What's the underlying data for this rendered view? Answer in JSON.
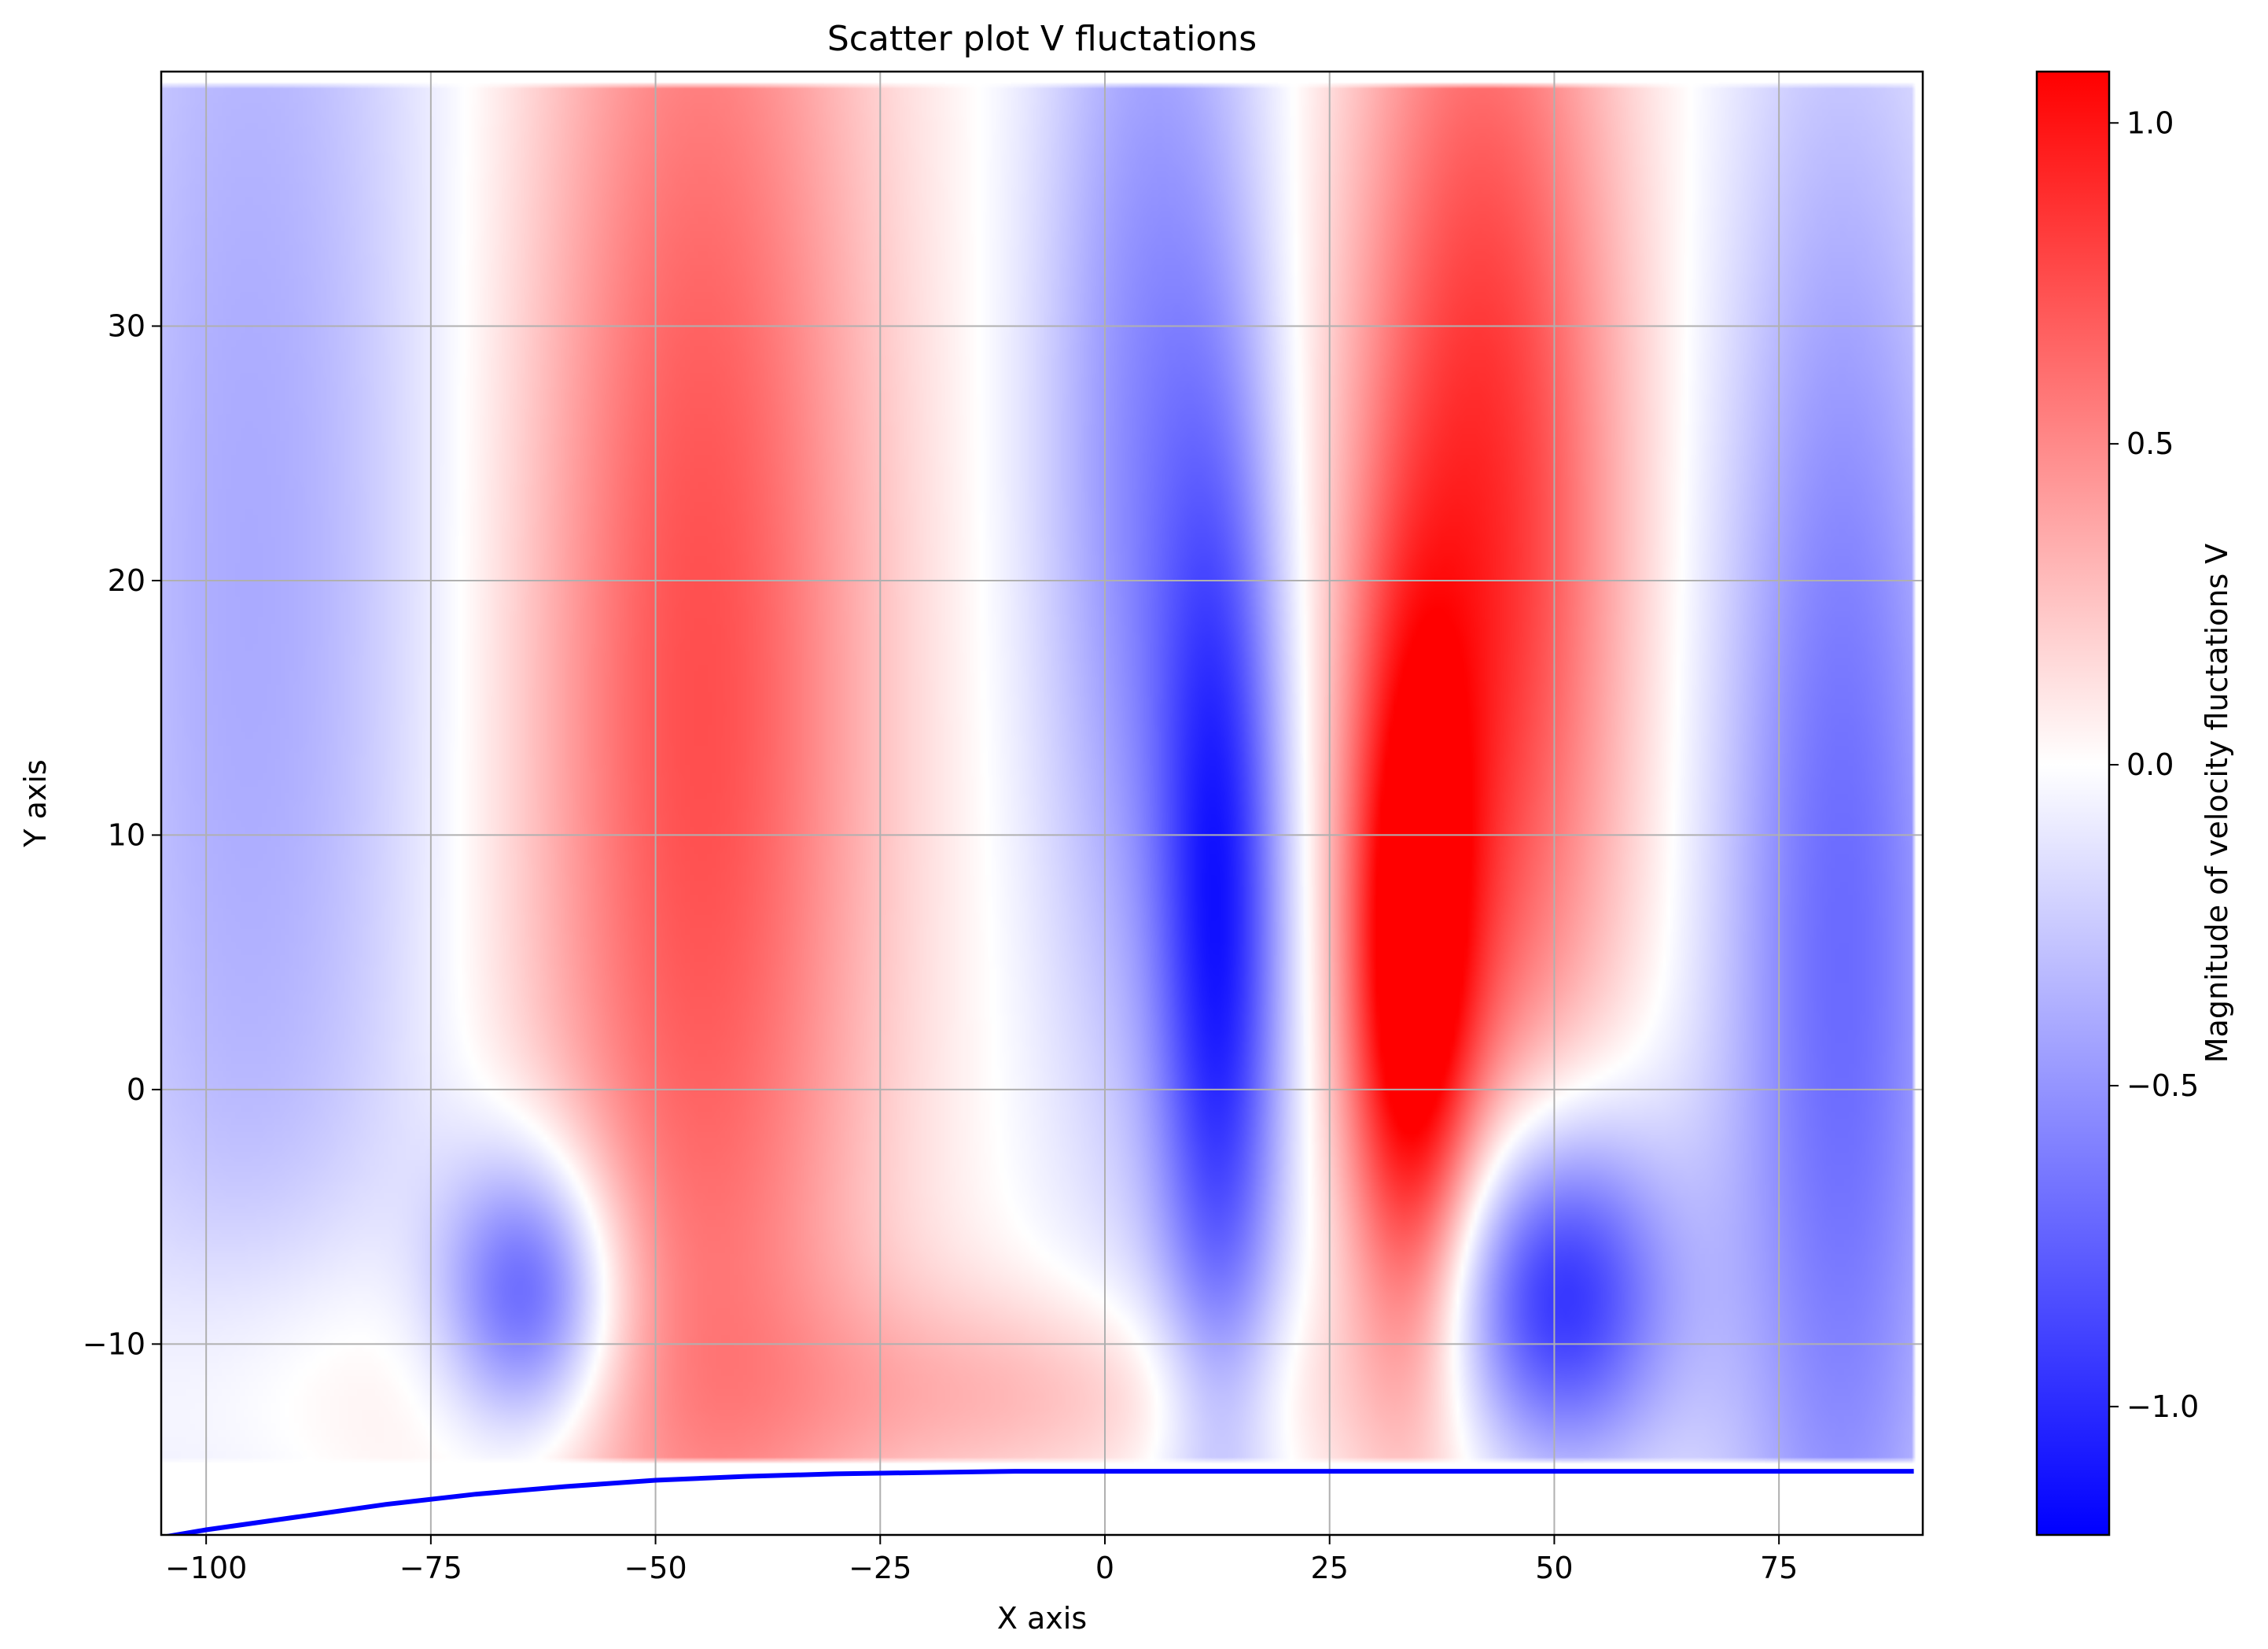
{
  "chart_data": {
    "type": "heatmap",
    "title": "Scatter plot V fluctations",
    "xlabel": "X axis",
    "ylabel": "Y axis",
    "xlim": [
      -105,
      91
    ],
    "ylim": [
      -17.5,
      40
    ],
    "grid": true,
    "x_ticks": [
      -100,
      -75,
      -50,
      -25,
      0,
      25,
      50,
      75
    ],
    "x_tick_labels": [
      "−100",
      "−75",
      "−50",
      "−25",
      "0",
      "25",
      "50",
      "75"
    ],
    "y_ticks": [
      -10,
      0,
      10,
      20,
      30
    ],
    "y_tick_labels": [
      "−10",
      "0",
      "10",
      "20",
      "30"
    ],
    "colorbar": {
      "label": "Magnitude of velocity fluctations V",
      "range": [
        -1.2,
        1.08
      ],
      "colormap": "bwr",
      "low_color": "#0000ff",
      "mid_color": "#ffffff",
      "high_color": "#ff0000",
      "ticks": [
        -1.0,
        -0.5,
        0.0,
        0.5,
        1.0
      ],
      "tick_labels": [
        "−1.0",
        "−0.5",
        "0.0",
        "0.5",
        "1.0"
      ]
    },
    "field_extent": {
      "x": [
        -105,
        90
      ],
      "y": [
        -14.5,
        39.5
      ]
    },
    "field_blobs": [
      {
        "x": -95,
        "y": 20,
        "sx": 15,
        "sy": 35,
        "v": -0.4
      },
      {
        "x": -45,
        "y": 15,
        "sx": 14,
        "sy": 30,
        "v": 0.75
      },
      {
        "x": -64,
        "y": -8,
        "sx": 7,
        "sy": 4,
        "v": -0.9
      },
      {
        "x": -90,
        "y": -12,
        "sx": 16,
        "sy": 5,
        "v": 0.25
      },
      {
        "x": -8,
        "y": -12,
        "sx": 22,
        "sy": 3,
        "v": 0.3
      },
      {
        "x": 5,
        "y": 25,
        "sx": 9,
        "sy": 20,
        "v": -0.55
      },
      {
        "x": 13,
        "y": 5,
        "sx": 5,
        "sy": 14,
        "v": -0.9
      },
      {
        "x": 42,
        "y": 22,
        "sx": 11,
        "sy": 20,
        "v": 0.9
      },
      {
        "x": 34,
        "y": 4,
        "sx": 5,
        "sy": 10,
        "v": 1.0
      },
      {
        "x": 50,
        "y": -8,
        "sx": 9,
        "sy": 5,
        "v": -1.15
      },
      {
        "x": 82,
        "y": 5,
        "sx": 10,
        "sy": 25,
        "v": -0.7
      }
    ],
    "wall_line": {
      "color": "#0000ff",
      "x": [
        -105,
        -100,
        -90,
        -80,
        -70,
        -60,
        -50,
        -40,
        -30,
        -20,
        -10,
        0,
        25,
        50,
        90
      ],
      "y": [
        -17.6,
        -17.3,
        -16.8,
        -16.3,
        -15.9,
        -15.6,
        -15.35,
        -15.2,
        -15.1,
        -15.05,
        -15.0,
        -15.0,
        -15.0,
        -15.0,
        -15.0
      ]
    }
  }
}
